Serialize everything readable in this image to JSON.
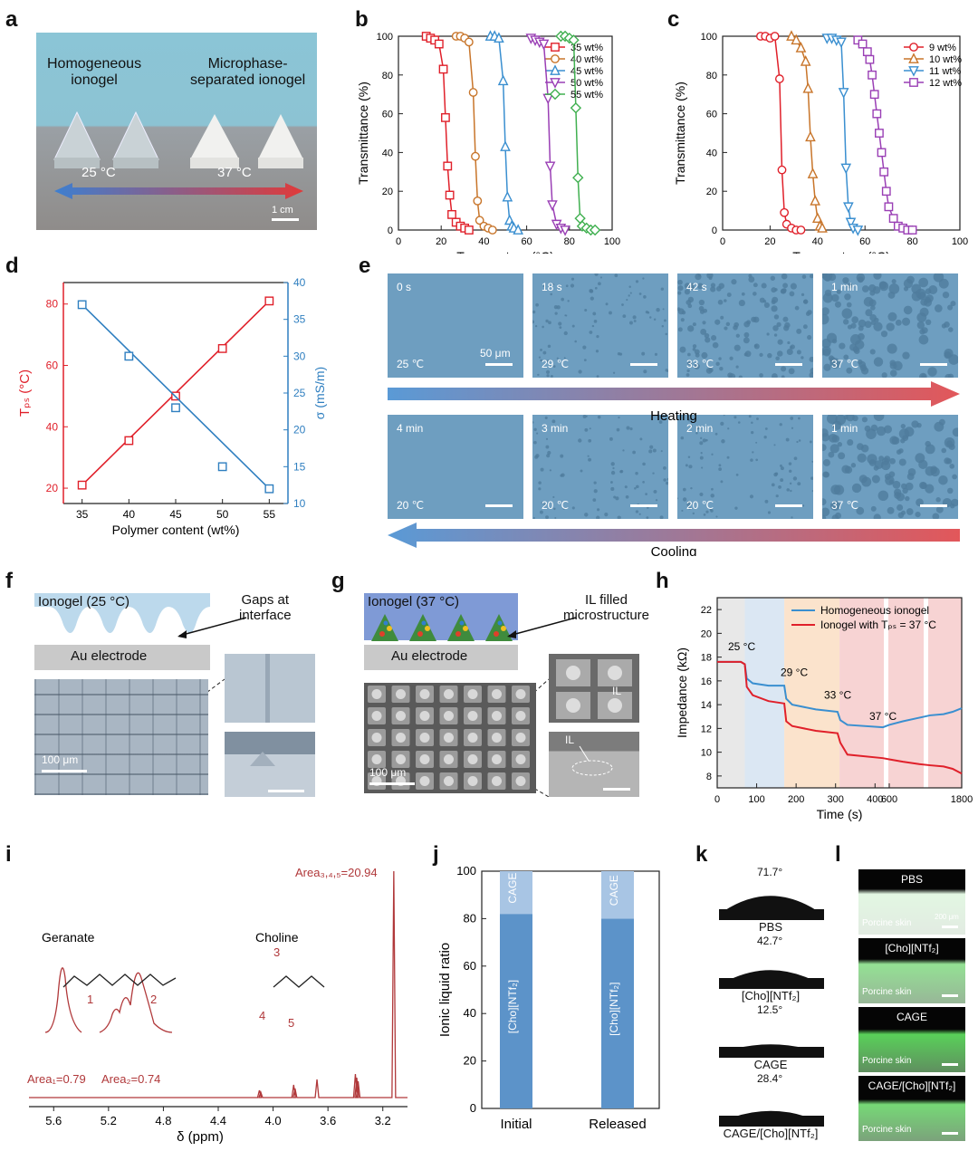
{
  "panels": {
    "a": {
      "label": "a",
      "texts": {
        "left": "Homogeneous\nionogel",
        "right": "Microphase-\nseparated ionogel",
        "t1": "25 °C",
        "t2": "37 °C",
        "scale": "1 cm"
      }
    },
    "b": {
      "label": "b"
    },
    "c": {
      "label": "c"
    },
    "d": {
      "label": "d"
    },
    "e": {
      "label": "e",
      "heating": "Heating",
      "cooling": "Cooling",
      "scale": "50 μm",
      "top": [
        {
          "time": "0 s",
          "temp": "25 ℃"
        },
        {
          "time": "18 s",
          "temp": "29 ℃"
        },
        {
          "time": "42 s",
          "temp": "33 ℃"
        },
        {
          "time": "1 min",
          "temp": "37 ℃"
        }
      ],
      "bottom": [
        {
          "time": "4 min",
          "temp": "20 ℃"
        },
        {
          "time": "3 min",
          "temp": "20 ℃"
        },
        {
          "time": "2 min",
          "temp": "20 ℃"
        },
        {
          "time": "1 min",
          "temp": "37 ℃"
        }
      ]
    },
    "f": {
      "label": "f",
      "ionogel": "Ionogel (25 °C)",
      "gaps": "Gaps at\ninterface",
      "electrode": "Au electrode",
      "scale": "100 μm"
    },
    "g": {
      "label": "g",
      "ionogel": "Ionogel (37 °C)",
      "ilfilled": "IL filled\nmicrostructure",
      "electrode": "Au electrode",
      "scale": "100 μm",
      "il": "IL"
    },
    "h": {
      "label": "h"
    },
    "i": {
      "label": "i",
      "geranate": "Geranate",
      "choline": "Choline",
      "area1": "Area₁=0.79",
      "area2": "Area₂=0.74",
      "area345": "Area₃,₄,₅=20.94",
      "n1": "1",
      "n2": "2",
      "n3": "3",
      "n4": "4",
      "n5": "5",
      "xlabel": "δ (ppm)",
      "xticks": [
        "5.6",
        "5.2",
        "4.8",
        "4.4",
        "4.0",
        "3.6",
        "3.2"
      ]
    },
    "j": {
      "label": "j"
    },
    "k": {
      "label": "k",
      "items": [
        {
          "angle": "71.7°",
          "name": "PBS"
        },
        {
          "angle": "42.7°",
          "name": "[Cho][NTf₂]"
        },
        {
          "angle": "12.5°",
          "name": "CAGE"
        },
        {
          "angle": "28.4°",
          "name": "CAGE/[Cho][NTf₂]"
        }
      ]
    },
    "l": {
      "label": "l",
      "items": [
        {
          "title": "PBS",
          "sub": "Porcine skin"
        },
        {
          "title": "[Cho][NTf₂]",
          "sub": "Porcine skin"
        },
        {
          "title": "CAGE",
          "sub": "Porcine skin"
        },
        {
          "title": "CAGE/[Cho][NTf₂]",
          "sub": "Porcine skin"
        }
      ],
      "scale": "200 μm"
    }
  },
  "chart_data": [
    {
      "id": "b",
      "type": "line",
      "xlabel": "Temperature (°C)",
      "ylabel": "Transmittance (%)",
      "xlim": [
        0,
        100
      ],
      "ylim": [
        0,
        100
      ],
      "xticks": [
        0,
        20,
        40,
        60,
        80,
        100
      ],
      "yticks": [
        0,
        20,
        40,
        60,
        80,
        100
      ],
      "series": [
        {
          "name": "35 wt%",
          "color": "#e0202a",
          "marker": "square",
          "x": [
            13,
            15,
            17,
            19,
            21,
            22,
            23,
            24,
            25,
            27,
            29,
            31,
            33
          ],
          "y": [
            100,
            99,
            98,
            96,
            83,
            58,
            33,
            18,
            8,
            4,
            2,
            1,
            0
          ]
        },
        {
          "name": "40 wt%",
          "color": "#c8752a",
          "marker": "circle",
          "x": [
            27,
            29,
            31,
            33,
            35,
            36,
            37,
            38,
            40,
            42,
            44
          ],
          "y": [
            100,
            100,
            99,
            97,
            71,
            38,
            15,
            5,
            2,
            1,
            0
          ]
        },
        {
          "name": "45 wt%",
          "color": "#3a8fd0",
          "marker": "triangle",
          "x": [
            43,
            45,
            47,
            49,
            50,
            51,
            52,
            53,
            54,
            56
          ],
          "y": [
            100,
            100,
            99,
            77,
            43,
            17,
            5,
            2,
            1,
            0
          ]
        },
        {
          "name": "50 wt%",
          "color": "#9a3fb5",
          "marker": "triangle-down",
          "x": [
            62,
            64,
            66,
            68,
            70,
            71,
            72,
            74,
            76,
            78
          ],
          "y": [
            99,
            98,
            97,
            96,
            68,
            33,
            13,
            3,
            1,
            0
          ]
        },
        {
          "name": "55 wt%",
          "color": "#40b050",
          "marker": "diamond",
          "x": [
            76,
            78,
            80,
            82,
            83,
            84,
            85,
            86,
            88,
            90,
            92
          ],
          "y": [
            100,
            100,
            99,
            98,
            63,
            27,
            6,
            2,
            1,
            0,
            0
          ]
        }
      ]
    },
    {
      "id": "c",
      "type": "line",
      "xlabel": "Temperature (°C)",
      "ylabel": "Transmittance (%)",
      "xlim": [
        0,
        100
      ],
      "ylim": [
        0,
        100
      ],
      "xticks": [
        0,
        20,
        40,
        60,
        80,
        100
      ],
      "yticks": [
        0,
        20,
        40,
        60,
        80,
        100
      ],
      "series": [
        {
          "name": "9 wt%",
          "color": "#e0202a",
          "marker": "circle",
          "x": [
            16,
            18,
            20,
            22,
            24,
            25,
            26,
            27,
            29,
            31,
            33
          ],
          "y": [
            100,
            100,
            99,
            100,
            78,
            31,
            9,
            3,
            1,
            0,
            0
          ]
        },
        {
          "name": "10 wt%",
          "color": "#c8752a",
          "marker": "triangle",
          "x": [
            29,
            31,
            33,
            35,
            36,
            37,
            38,
            39,
            40,
            41,
            42
          ],
          "y": [
            100,
            98,
            94,
            87,
            73,
            48,
            29,
            15,
            6,
            2,
            1
          ]
        },
        {
          "name": "11 wt%",
          "color": "#3a8fd0",
          "marker": "triangle-down",
          "x": [
            44,
            46,
            48,
            50,
            51,
            52,
            53,
            54,
            55,
            57
          ],
          "y": [
            99,
            99,
            98,
            97,
            71,
            32,
            12,
            4,
            1,
            0
          ]
        },
        {
          "name": "12 wt%",
          "color": "#9a3fb5",
          "marker": "square",
          "x": [
            57,
            59,
            61,
            62,
            63,
            64,
            65,
            66,
            67,
            68,
            69,
            70,
            72,
            74,
            76,
            78,
            80
          ],
          "y": [
            98,
            96,
            92,
            88,
            80,
            70,
            60,
            50,
            40,
            30,
            20,
            12,
            6,
            2,
            1,
            0,
            0
          ]
        }
      ]
    },
    {
      "id": "d",
      "type": "scatter",
      "xlabel": "Polymer content (wt%)",
      "ylabel_left": "Tₚₛ (°C)",
      "ylabel_right": "σ (mS/m)",
      "xlim": [
        33,
        57
      ],
      "ylim_left": [
        15,
        87
      ],
      "ylim_right": [
        10,
        40
      ],
      "xticks": [
        35,
        40,
        45,
        50,
        55
      ],
      "yticks_left": [
        20,
        40,
        60,
        80
      ],
      "yticks_right": [
        10,
        15,
        20,
        25,
        30,
        35,
        40
      ],
      "series": [
        {
          "name": "Tps",
          "color": "#e0202a",
          "axis": "left",
          "x": [
            35,
            40,
            45,
            50,
            55
          ],
          "y": [
            21,
            35.5,
            50,
            65.5,
            81
          ]
        },
        {
          "name": "sigma",
          "color": "#2f7fc0",
          "axis": "right",
          "x": [
            35,
            40,
            45,
            50,
            55
          ],
          "y": [
            37,
            30,
            23,
            15,
            12
          ]
        }
      ]
    },
    {
      "id": "h",
      "type": "line",
      "xlabel": "Time (s)",
      "ylabel": "Impedance (kΩ)",
      "xticks": [
        "0",
        "100",
        "200",
        "300",
        "400",
        "600",
        "1800"
      ],
      "ylim": [
        7,
        23
      ],
      "yticks": [
        8,
        10,
        12,
        14,
        16,
        18,
        20,
        22
      ],
      "annotations": [
        "25 °C",
        "29 °C",
        "33 °C",
        "37 °C"
      ],
      "series": [
        {
          "name": "Homogeneous ionogel",
          "color": "#3a8fd0"
        },
        {
          "name": "Ionogel with Tₚₛ = 37 °C",
          "color": "#e0202a"
        }
      ]
    },
    {
      "id": "j",
      "type": "bar",
      "categories": [
        "Initial",
        "Released"
      ],
      "ylabel": "Ionic liquid ratio",
      "ylim": [
        0,
        100
      ],
      "yticks": [
        0,
        20,
        40,
        60,
        80,
        100
      ],
      "series": [
        {
          "name": "[Cho][NTf₂]",
          "color": "#5c93c9",
          "values": [
            82,
            80
          ]
        },
        {
          "name": "CAGE",
          "color": "#a8c5e4",
          "values": [
            18,
            20
          ]
        }
      ]
    }
  ]
}
